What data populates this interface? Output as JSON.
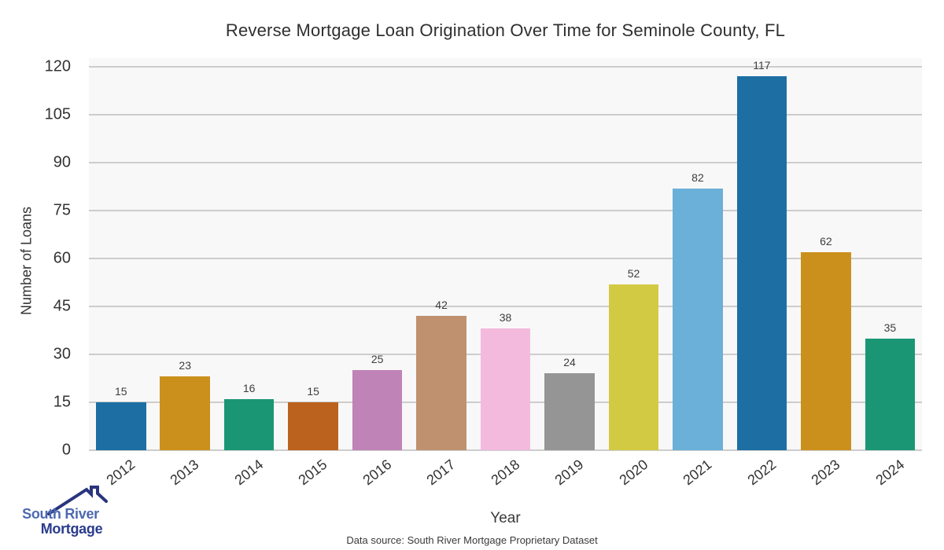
{
  "chart_data": {
    "type": "bar",
    "title": "Reverse Mortgage Loan Origination Over Time for Seminole County, FL",
    "xlabel": "Year",
    "ylabel": "Number of Loans",
    "categories": [
      "2012",
      "2013",
      "2014",
      "2015",
      "2016",
      "2017",
      "2018",
      "2019",
      "2020",
      "2021",
      "2022",
      "2023",
      "2024"
    ],
    "values": [
      15,
      23,
      16,
      15,
      25,
      42,
      38,
      24,
      52,
      82,
      117,
      62,
      35
    ],
    "bar_colors": [
      "#1d6fa3",
      "#cb901c",
      "#1b9674",
      "#bb621e",
      "#c083b7",
      "#bf916f",
      "#f3bade",
      "#959595",
      "#d3ca44",
      "#6ab0d8",
      "#1d6fa3",
      "#cb901c",
      "#1b9674"
    ],
    "ylim": [
      0,
      120
    ],
    "yticks": [
      0,
      15,
      30,
      45,
      60,
      75,
      90,
      105,
      120
    ],
    "grid": true,
    "legend": "none",
    "plot_background": "#f8f8f8",
    "grid_color": "#cdcdcd",
    "value_labels": true
  },
  "footer": {
    "data_source": "Data source: South River Mortgage Proprietary Dataset"
  },
  "logo": {
    "line1": "South River",
    "line2": "Mortgage",
    "line1_color": "#4c69b0",
    "line2_color": "#2a3b8d",
    "roof_color": "#2a357e"
  }
}
